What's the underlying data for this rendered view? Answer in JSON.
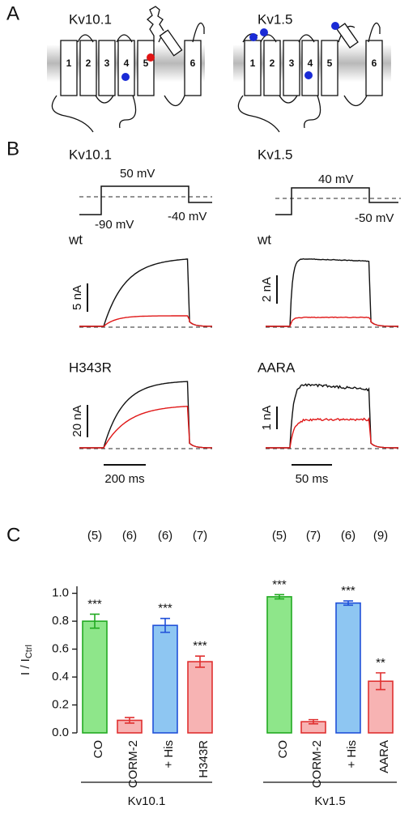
{
  "panel_a": {
    "label": "A",
    "channels": [
      {
        "name": "Kv10.1",
        "segments": [
          "1",
          "2",
          "3",
          "4",
          "5",
          "6"
        ]
      },
      {
        "name": "Kv1.5",
        "segments": [
          "1",
          "2",
          "3",
          "4",
          "5",
          "6"
        ]
      }
    ]
  },
  "panel_b": {
    "label": "B",
    "columns": [
      {
        "name": "Kv10.1",
        "voltages": [
          "50 mV",
          "-90 mV",
          "-40 mV"
        ],
        "traces": [
          {
            "label": "wt",
            "scale": "5 nA"
          },
          {
            "label": "H343R",
            "scale": "20 nA"
          }
        ],
        "time_scale": "200 ms"
      },
      {
        "name": "Kv1.5",
        "voltages": [
          "40 mV",
          "-50 mV"
        ],
        "traces": [
          {
            "label": "wt",
            "scale": "2 nA"
          },
          {
            "label": "AARA",
            "scale": "1 nA"
          }
        ],
        "time_scale": "50 ms"
      }
    ]
  },
  "panel_c": {
    "label": "C",
    "chart_data": {
      "type": "bar",
      "ylabel": "I / I",
      "ylabel_sub": "Ctrl",
      "categories": [
        "CO",
        "CORM-2",
        "+ His",
        "H343R",
        "CO",
        "CORM-2",
        "+ His",
        "AARA"
      ],
      "values": [
        0.8,
        0.09,
        0.77,
        0.51,
        0.975,
        0.08,
        0.93,
        0.37
      ],
      "errors": [
        0.05,
        0.02,
        0.05,
        0.04,
        0.015,
        0.015,
        0.015,
        0.06
      ],
      "colors": [
        "#8ee68a",
        "#f7b3b3",
        "#8ec6f2",
        "#f7b3b3",
        "#8ee68a",
        "#f7b3b3",
        "#8ec6f2",
        "#f7b3b3"
      ],
      "edge_colors": [
        "#22aa22",
        "#e03030",
        "#2050d8",
        "#e03030",
        "#22aa22",
        "#e03030",
        "#2050d8",
        "#e03030"
      ],
      "n_labels": [
        "(5)",
        "(6)",
        "(6)",
        "(7)",
        "(5)",
        "(7)",
        "(6)",
        "(9)"
      ],
      "significance": [
        "***",
        null,
        "***",
        "***",
        "***",
        null,
        "***",
        "**"
      ],
      "groups": [
        "Kv10.1",
        "Kv1.5"
      ],
      "ylim": [
        0,
        1.05
      ],
      "yticks": [
        {
          "value": 0,
          "label": "0.0"
        },
        0.2,
        0.4,
        0.6,
        0.8,
        {
          "value": 1,
          "label": "1.0"
        }
      ]
    }
  }
}
